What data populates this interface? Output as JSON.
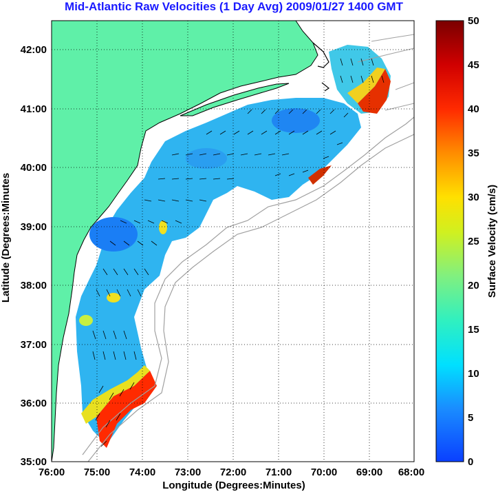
{
  "title": "Mid-Atlantic Raw Velocities (1 Day Avg) 2009/01/27 1400 GMT",
  "chart_data": {
    "type": "heatmap",
    "title": "Mid-Atlantic Raw Velocities (1 Day Avg) 2009/01/27 1400 GMT",
    "xlabel": "Longitude (Degrees:Minutes)",
    "ylabel": "Latitude (Degrees:Minutes",
    "x_ticks": [
      "76:00",
      "75:00",
      "74:00",
      "73:00",
      "72:00",
      "71:00",
      "70:00",
      "69:00",
      "68:00"
    ],
    "y_ticks": [
      "35:00",
      "36:00",
      "37:00",
      "38:00",
      "39:00",
      "40:00",
      "41:00",
      "42:00"
    ],
    "xlim": [
      -76,
      -68
    ],
    "ylim": [
      35,
      42.5
    ],
    "grid": true,
    "colorbar": {
      "label": "Surface Velocity (cm/s)",
      "min": 0,
      "max": 50,
      "ticks": [
        "0",
        "5",
        "10",
        "15",
        "20",
        "25",
        "30",
        "35",
        "40",
        "45",
        "50"
      ],
      "colormap": "jet"
    },
    "colors": {
      "land": "#5ff0a8",
      "water_background": "#ffffff",
      "coastline": "#000000",
      "bathymetry": "#a0a0a0",
      "title": "#1a1aff"
    }
  }
}
